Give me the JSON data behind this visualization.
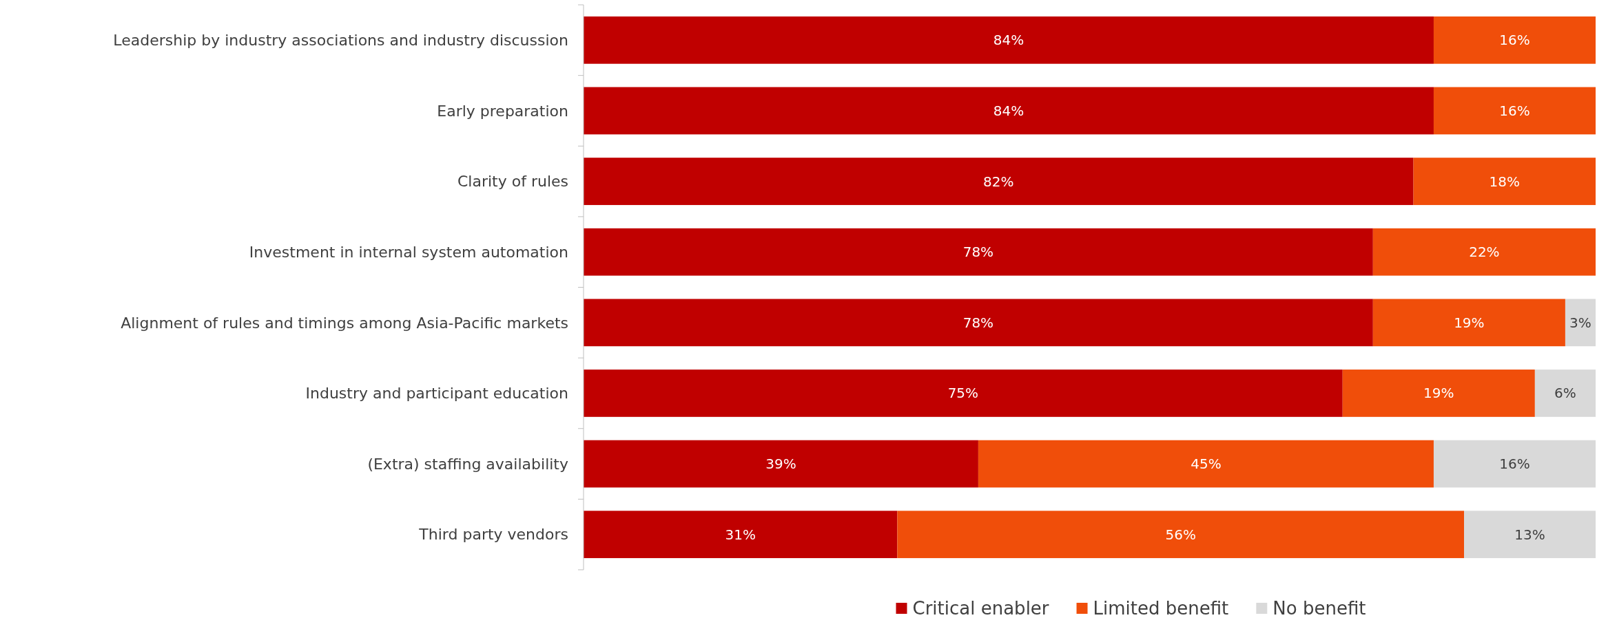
{
  "chart_data": {
    "type": "bar",
    "orientation": "horizontal",
    "stacked": true,
    "legend": "bottom",
    "categories": [
      "Leadership by industry associations and industry discussion",
      "Early preparation",
      "Clarity of rules",
      "Investment in internal system automation",
      "Alignment of rules and timings among Asia-Pacific markets",
      "Industry and participant education",
      "(Extra) staffing availability",
      "Third party vendors"
    ],
    "series": [
      {
        "name": "Critical enabler",
        "color": "#c00000",
        "values": [
          84,
          84,
          82,
          78,
          78,
          75,
          39,
          31
        ],
        "value_labels": [
          "84%",
          "84%",
          "82%",
          "78%",
          "78%",
          "75%",
          "39%",
          "31%"
        ]
      },
      {
        "name": "Limited benefit",
        "color": "#f04e0a",
        "values": [
          16,
          16,
          18,
          22,
          19,
          19,
          45,
          56
        ],
        "value_labels": [
          "16%",
          "16%",
          "18%",
          "22%",
          "19%",
          "19%",
          "45%",
          "56%"
        ]
      },
      {
        "name": "No benefit",
        "color": "#d9d9d9",
        "values": [
          null,
          null,
          null,
          null,
          3,
          6,
          16,
          13
        ],
        "value_labels": [
          null,
          null,
          null,
          null,
          "3%",
          "6%",
          "16%",
          "13%"
        ]
      }
    ]
  }
}
